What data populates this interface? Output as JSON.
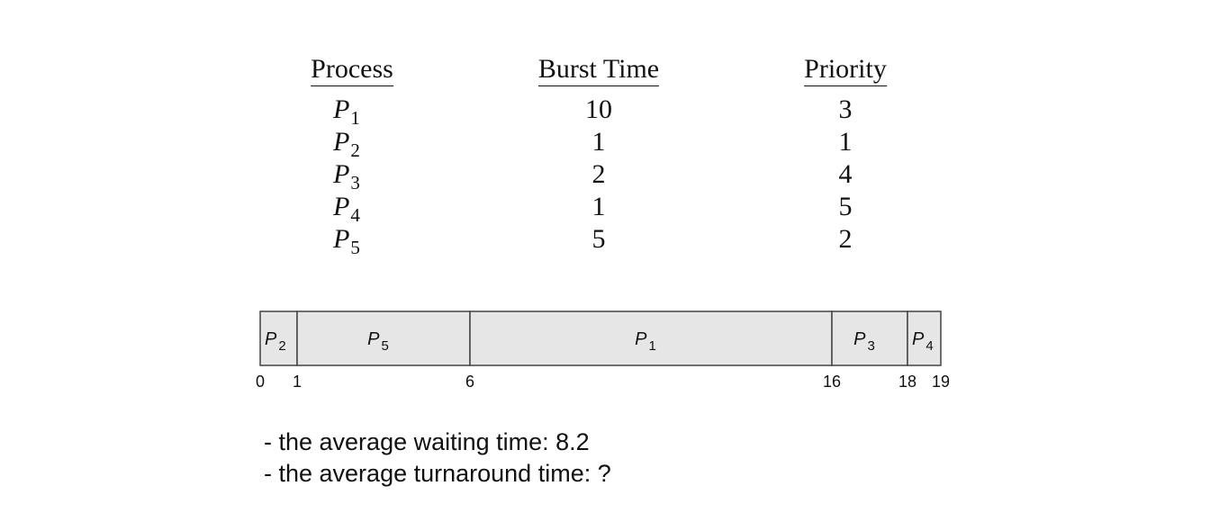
{
  "table": {
    "headers": {
      "process": "Process",
      "burst": "Burst Time",
      "priority": "Priority"
    },
    "rows": [
      {
        "process": "P",
        "sub": "1",
        "burst": "10",
        "priority": "3"
      },
      {
        "process": "P",
        "sub": "2",
        "burst": "1",
        "priority": "1"
      },
      {
        "process": "P",
        "sub": "3",
        "burst": "2",
        "priority": "4"
      },
      {
        "process": "P",
        "sub": "4",
        "burst": "1",
        "priority": "5"
      },
      {
        "process": "P",
        "sub": "5",
        "burst": "5",
        "priority": "2"
      }
    ]
  },
  "gantt": {
    "segments": [
      {
        "label": "P",
        "sub": "2",
        "start": 0,
        "end": 1
      },
      {
        "label": "P",
        "sub": "5",
        "start": 1,
        "end": 6
      },
      {
        "label": "P",
        "sub": "1",
        "start": 6,
        "end": 16
      },
      {
        "label": "P",
        "sub": "3",
        "start": 16,
        "end": 18
      },
      {
        "label": "P",
        "sub": "4",
        "start": 18,
        "end": 19
      }
    ],
    "ticks": [
      {
        "value": 0,
        "label": "0"
      },
      {
        "value": 1,
        "label": "1"
      },
      {
        "value": 6,
        "label": "6"
      },
      {
        "value": 16,
        "label": "16"
      },
      {
        "value": 18,
        "label": "18"
      },
      {
        "value": 19,
        "label": "19"
      }
    ],
    "colors": {
      "fill": "#e6e6e6",
      "stroke": "#444444"
    }
  },
  "notes": {
    "line1": "- the average waiting time: 8.2",
    "line2": "- the average turnaround time:  ?"
  }
}
